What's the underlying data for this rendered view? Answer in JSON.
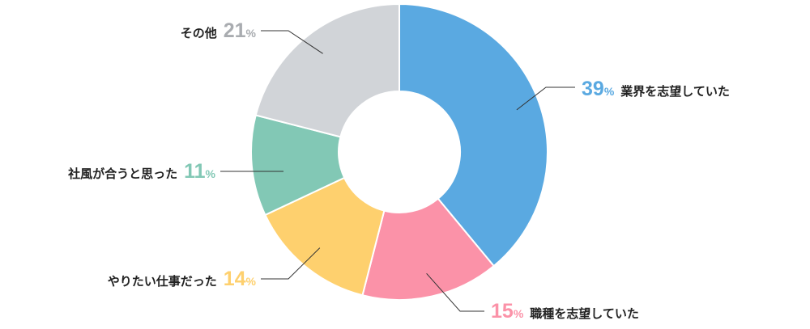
{
  "chart_data": {
    "type": "pie",
    "variant": "donut",
    "direction": "clockwise",
    "start": "top",
    "slices": [
      {
        "label": "業界を志望していた",
        "value": 39,
        "percent_text": "39",
        "percent_sign": "%",
        "color": "#5aa9e1",
        "label_side": "right"
      },
      {
        "label": "職種を志望していた",
        "value": 15,
        "percent_text": "15",
        "percent_sign": "%",
        "color": "#fb92a8",
        "label_side": "right"
      },
      {
        "label": "やりたい仕事だった",
        "value": 14,
        "percent_text": "14",
        "percent_sign": "%",
        "color": "#fed06e",
        "label_side": "left"
      },
      {
        "label": "社風が合うと思った",
        "value": 11,
        "percent_text": "11",
        "percent_sign": "%",
        "color": "#82c8b5",
        "label_side": "left"
      },
      {
        "label": "その他",
        "value": 21,
        "percent_text": "21",
        "percent_sign": "%",
        "color": "#a9acb0",
        "label_side": "left"
      }
    ],
    "colors": {
      "label_text": "#222222",
      "leader_line": "#333333",
      "slice_border": "#ffffff",
      "other_slice_fill": "#d1d4d8"
    }
  }
}
